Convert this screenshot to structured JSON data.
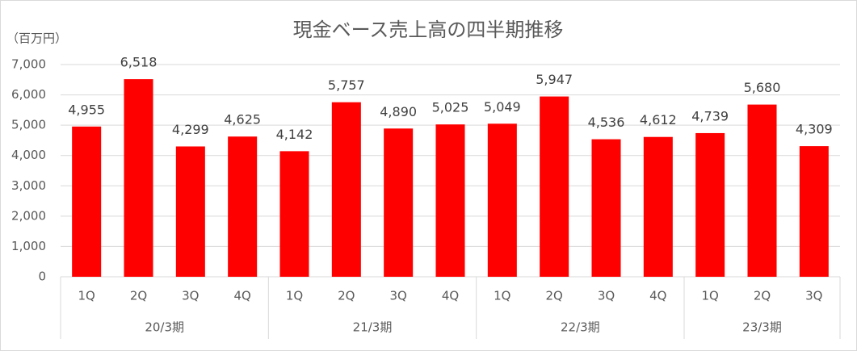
{
  "chart_data": {
    "type": "bar",
    "title": "現金ベース売上高の四半期推移",
    "unit_label": "（百万円）",
    "color": "#ff0000",
    "grid": true,
    "ylim": [
      0,
      7000
    ],
    "yticks": [
      0,
      {
        "value": 1000,
        "label": "1,000"
      },
      {
        "value": 2000,
        "label": "2,000"
      },
      {
        "value": 3000,
        "label": "3,000"
      },
      {
        "value": 4000,
        "label": "4,000"
      },
      {
        "value": 5000,
        "label": "5,000"
      },
      {
        "value": 6000,
        "label": "6,000"
      },
      {
        "value": 7000,
        "label": "7,000"
      }
    ],
    "groups": [
      {
        "name": "20/3期",
        "categories": [
          "1Q",
          "2Q",
          "3Q",
          "4Q"
        ],
        "values": [
          4955,
          6518,
          4299,
          4625
        ],
        "value_labels": [
          "4,955",
          "6,518",
          "4,299",
          "4,625"
        ]
      },
      {
        "name": "21/3期",
        "categories": [
          "1Q",
          "2Q",
          "3Q",
          "4Q"
        ],
        "values": [
          4142,
          5757,
          4890,
          5025
        ],
        "value_labels": [
          "4,142",
          "5,757",
          "4,890",
          "5,025"
        ]
      },
      {
        "name": "22/3期",
        "categories": [
          "1Q",
          "2Q",
          "3Q",
          "4Q"
        ],
        "values": [
          5049,
          5947,
          4536,
          4612
        ],
        "value_labels": [
          "5,049",
          "5,947",
          "4,536",
          "4,612"
        ]
      },
      {
        "name": "23/3期",
        "categories": [
          "1Q",
          "2Q",
          "3Q"
        ],
        "values": [
          4739,
          5680,
          4309
        ],
        "value_labels": [
          "4,739",
          "5,680",
          "4,309"
        ]
      }
    ]
  }
}
